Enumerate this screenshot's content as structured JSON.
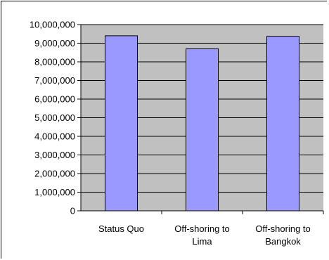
{
  "chart_data": {
    "type": "bar",
    "categories": [
      [
        "Status Quo"
      ],
      [
        "Off-shoring to",
        "Lima"
      ],
      [
        "Off-shoring to",
        "Bangkok"
      ]
    ],
    "values": [
      9400000,
      8700000,
      9370000
    ],
    "ylim": [
      0,
      10000000
    ],
    "ytick_step": 1000000,
    "yticks": [
      "0",
      "1,000,000",
      "2,000,000",
      "3,000,000",
      "4,000,000",
      "5,000,000",
      "6,000,000",
      "7,000,000",
      "8,000,000",
      "9,000,000",
      "10,000,000"
    ],
    "grid": true,
    "legend": "none",
    "colors": {
      "plot_bg": "#c0c0c0",
      "bar_fill": "#9999ff",
      "bar_stroke": "#000000",
      "grid": "#000000"
    }
  }
}
